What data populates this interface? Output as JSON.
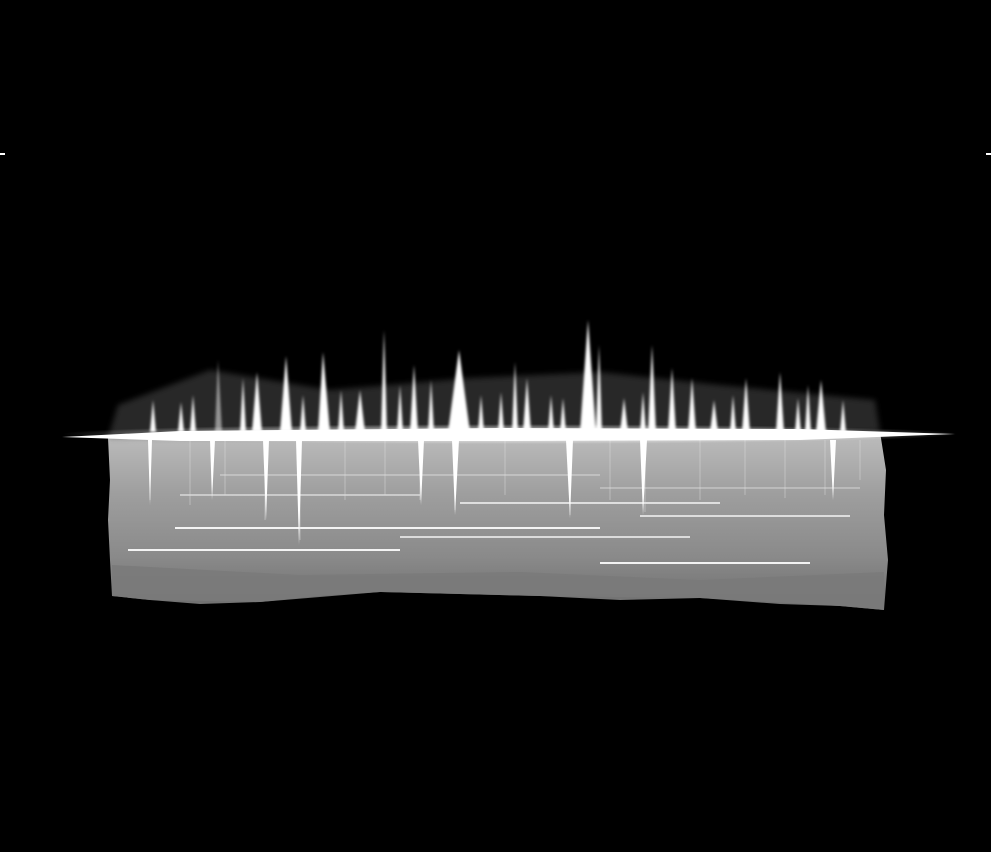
{
  "image": {
    "content": "volumetric-rendering",
    "background_color": "#000000",
    "foreground_color": "#ffffff",
    "mid_tone_color": "#9a9a9a"
  }
}
